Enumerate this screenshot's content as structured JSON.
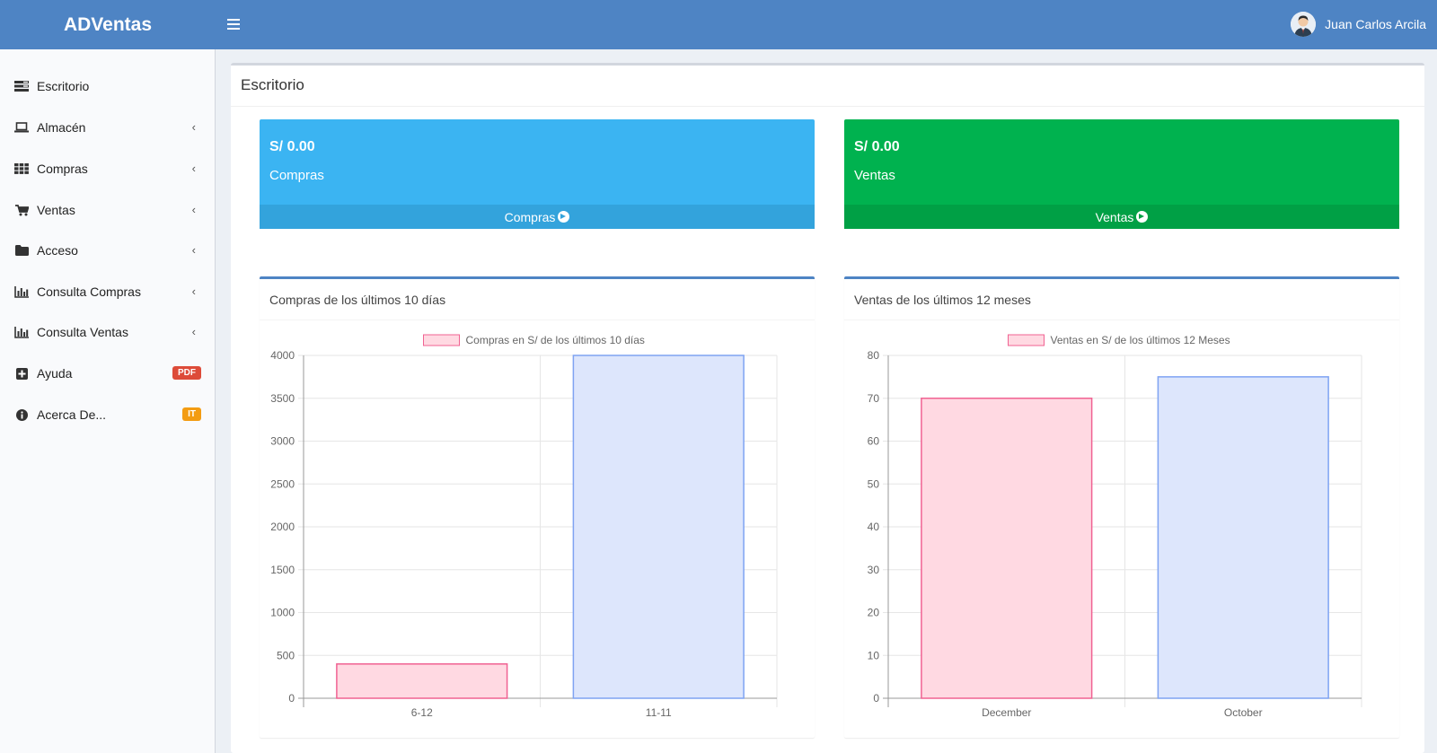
{
  "header": {
    "brand": "ADVentas",
    "user_name": "Juan Carlos Arcila"
  },
  "sidebar": {
    "items": [
      {
        "label": "Escritorio",
        "icon": "dashboard-icon",
        "has_chevron": false
      },
      {
        "label": "Almacén",
        "icon": "laptop-icon",
        "has_chevron": true
      },
      {
        "label": "Compras",
        "icon": "grid-icon",
        "has_chevron": true
      },
      {
        "label": "Ventas",
        "icon": "cart-icon",
        "has_chevron": true
      },
      {
        "label": "Acceso",
        "icon": "folder-icon",
        "has_chevron": true
      },
      {
        "label": "Consulta Compras",
        "icon": "bar-chart-icon",
        "has_chevron": true
      },
      {
        "label": "Consulta Ventas",
        "icon": "bar-chart-icon",
        "has_chevron": true
      },
      {
        "label": "Ayuda",
        "icon": "plus-square-icon",
        "badge": "PDF",
        "badge_color": "#dd4b39"
      },
      {
        "label": "Acerca De...",
        "icon": "info-circle-icon",
        "badge": "IT",
        "badge_color": "#f39c12"
      }
    ]
  },
  "main": {
    "title": "Escritorio",
    "cards": [
      {
        "amount": "S/ 0.00",
        "label": "Compras",
        "footer": "Compras",
        "color": "#3bb4f2",
        "footer_color": "#33a3dc"
      },
      {
        "amount": "S/ 0.00",
        "label": "Ventas",
        "footer": "Ventas",
        "color": "#00b24f",
        "footer_color": "#00a045"
      }
    ],
    "panels": [
      {
        "title": "Compras de los últimos 10 días"
      },
      {
        "title": "Ventas de los últimos 12 meses"
      }
    ]
  },
  "chart_data": [
    {
      "type": "bar",
      "legend": "Compras en S/ de los últimos 10 días",
      "categories": [
        "6-12",
        "11-11"
      ],
      "values": [
        400,
        4000
      ],
      "ylim": [
        0,
        4000
      ],
      "yticks": [
        0,
        500,
        1000,
        1500,
        2000,
        2500,
        3000,
        3500,
        4000
      ],
      "bar_fill": [
        "#ffd9e2",
        "#dde6fc"
      ],
      "bar_stroke": [
        "#f06292",
        "#7fa3f2"
      ],
      "grid": true,
      "legend_position": "top"
    },
    {
      "type": "bar",
      "legend": "Ventas en S/ de los últimos 12 Meses",
      "categories": [
        "December",
        "October"
      ],
      "values": [
        70,
        75
      ],
      "ylim": [
        0,
        80
      ],
      "yticks": [
        0,
        10,
        20,
        30,
        40,
        50,
        60,
        70,
        80
      ],
      "bar_fill": [
        "#ffd9e2",
        "#dde6fc"
      ],
      "bar_stroke": [
        "#f06292",
        "#7fa3f2"
      ],
      "grid": true,
      "legend_position": "top"
    }
  ]
}
